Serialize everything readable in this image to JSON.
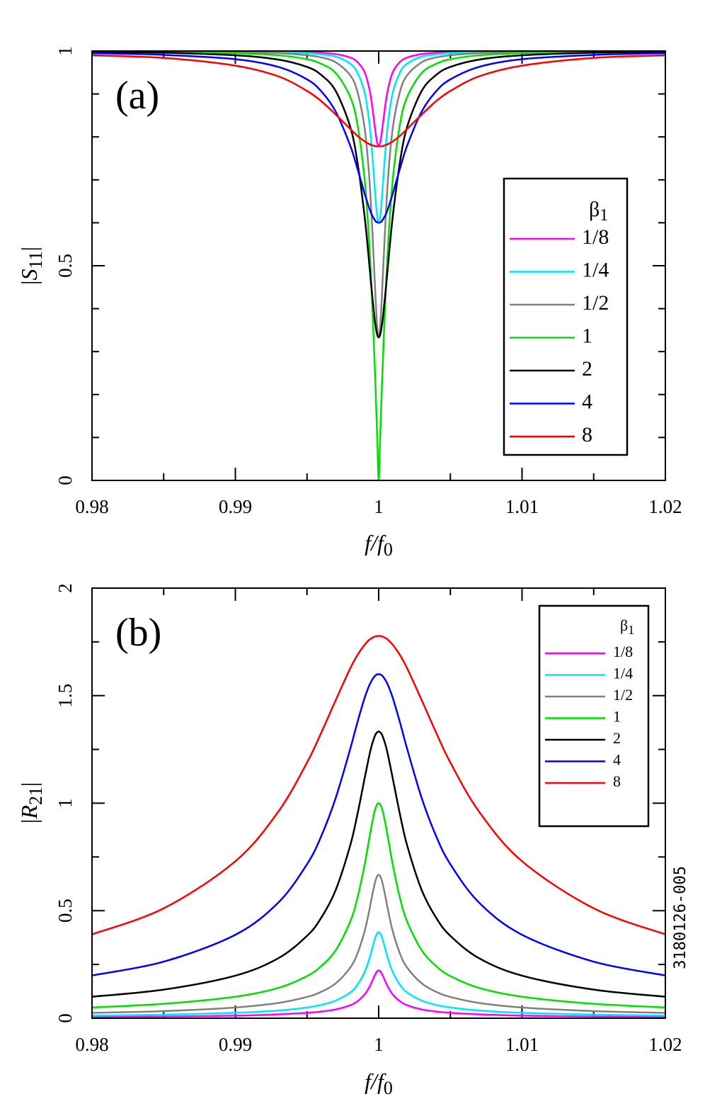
{
  "figure_id": "3180126-005",
  "chart_data": [
    {
      "type": "line",
      "panel_label": "(a)",
      "xlabel": {
        "main": "f/f",
        "sub": "0"
      },
      "ylabel": {
        "open": "|",
        "main": "S",
        "sub": "11",
        "close": "|"
      },
      "legend_title": {
        "main": "β",
        "sub": "1"
      },
      "legend": "right",
      "xlim": [
        0.98,
        1.02
      ],
      "xticks": [
        0.98,
        0.99,
        1,
        1.01,
        1.02
      ],
      "xminor": [
        0.985,
        0.995,
        1.005,
        1.015
      ],
      "ylim": [
        0,
        1
      ],
      "yticks": [
        0,
        0.5,
        1
      ],
      "yminor": [
        0.1,
        0.2,
        0.3,
        0.4,
        0.6,
        0.7,
        0.8,
        0.9
      ],
      "x": [
        0.98,
        0.985,
        0.99,
        0.993,
        0.995,
        0.996,
        0.997,
        0.998,
        0.9985,
        0.999,
        0.9993,
        0.9995,
        0.9997,
        0.9998,
        0.9999,
        1,
        1.0001,
        1.0002,
        1.0003,
        1.0005,
        1.0007,
        1.001,
        1.0015,
        1.002,
        1.003,
        1.004,
        1.005,
        1.007,
        1.01,
        1.015,
        1.02
      ],
      "series": [
        {
          "name": "1/8",
          "color": "#ff00ff",
          "values": [
            1.0,
            1.0,
            0.999,
            0.999,
            0.998,
            0.996,
            0.993,
            0.985,
            0.975,
            0.952,
            0.919,
            0.883,
            0.832,
            0.806,
            0.786,
            0.778,
            0.786,
            0.806,
            0.832,
            0.883,
            0.919,
            0.952,
            0.975,
            0.985,
            0.993,
            0.996,
            0.998,
            0.999,
            0.999,
            1.0,
            1.0
          ]
        },
        {
          "name": "1/4",
          "color": "#00e5ff",
          "values": [
            1.0,
            0.999,
            0.999,
            0.997,
            0.995,
            0.992,
            0.987,
            0.971,
            0.951,
            0.906,
            0.846,
            0.781,
            0.693,
            0.648,
            0.613,
            0.6,
            0.613,
            0.648,
            0.693,
            0.781,
            0.846,
            0.906,
            0.951,
            0.971,
            0.987,
            0.992,
            0.995,
            0.997,
            0.999,
            0.999,
            1.0
          ]
        },
        {
          "name": "1/2",
          "color": "#808080",
          "values": [
            0.999,
            0.999,
            0.998,
            0.995,
            0.99,
            0.985,
            0.974,
            0.944,
            0.907,
            0.825,
            0.725,
            0.62,
            0.483,
            0.413,
            0.356,
            0.333,
            0.356,
            0.413,
            0.483,
            0.62,
            0.725,
            0.825,
            0.907,
            0.944,
            0.974,
            0.985,
            0.99,
            0.995,
            0.998,
            0.999,
            0.999
          ]
        },
        {
          "name": "1",
          "color": "#00e000",
          "values": [
            0.999,
            0.998,
            0.995,
            0.99,
            0.981,
            0.97,
            0.949,
            0.894,
            0.832,
            0.707,
            0.574,
            0.447,
            0.287,
            0.196,
            0.1,
            0,
            0.1,
            0.196,
            0.287,
            0.447,
            0.574,
            0.707,
            0.832,
            0.894,
            0.949,
            0.97,
            0.981,
            0.99,
            0.995,
            0.998,
            0.999
          ]
        },
        {
          "name": "2",
          "color": "#000000",
          "values": [
            0.998,
            0.996,
            0.99,
            0.98,
            0.963,
            0.944,
            0.907,
            0.825,
            0.745,
            0.62,
            0.52,
            0.447,
            0.381,
            0.356,
            0.339,
            0.333,
            0.339,
            0.356,
            0.381,
            0.447,
            0.52,
            0.62,
            0.745,
            0.825,
            0.907,
            0.944,
            0.963,
            0.98,
            0.99,
            0.996,
            0.998
          ]
        },
        {
          "name": "4",
          "color": "#0000ff",
          "values": [
            0.995,
            0.991,
            0.981,
            0.963,
            0.934,
            0.906,
            0.859,
            0.781,
            0.728,
            0.67,
            0.638,
            0.62,
            0.608,
            0.603,
            0.601,
            0.6,
            0.601,
            0.603,
            0.608,
            0.62,
            0.638,
            0.67,
            0.728,
            0.781,
            0.859,
            0.906,
            0.934,
            0.963,
            0.981,
            0.991,
            0.995
          ]
        },
        {
          "name": "8",
          "color": "#ff0000",
          "values": [
            0.99,
            0.984,
            0.966,
            0.941,
            0.907,
            0.883,
            0.852,
            0.819,
            0.803,
            0.79,
            0.784,
            0.781,
            0.779,
            0.778,
            0.778,
            0.778,
            0.778,
            0.778,
            0.779,
            0.781,
            0.784,
            0.79,
            0.803,
            0.819,
            0.852,
            0.883,
            0.907,
            0.941,
            0.966,
            0.984,
            0.99
          ]
        }
      ]
    },
    {
      "type": "line",
      "panel_label": "(b)",
      "xlabel": {
        "main": "f/f",
        "sub": "0"
      },
      "ylabel": {
        "open": "|",
        "main": "R",
        "sub": "21",
        "close": "|"
      },
      "legend_title": {
        "main": "β",
        "sub": "1"
      },
      "legend": "upper right",
      "xlim": [
        0.98,
        1.02
      ],
      "xticks": [
        0.98,
        0.99,
        1,
        1.01,
        1.02
      ],
      "xminor": [
        0.985,
        0.995,
        1.005,
        1.015
      ],
      "ylim": [
        0,
        2
      ],
      "yticks": [
        0,
        0.5,
        1,
        1.5,
        2
      ],
      "yminor": [
        0.25,
        0.75,
        1.25,
        1.75
      ],
      "x": [
        0.98,
        0.985,
        0.99,
        0.993,
        0.995,
        0.996,
        0.997,
        0.998,
        0.9985,
        0.999,
        0.9993,
        0.9995,
        0.9997,
        0.9998,
        0.9999,
        1,
        1.0001,
        1.0002,
        1.0003,
        1.0005,
        1.0007,
        1.001,
        1.0015,
        1.002,
        1.003,
        1.004,
        1.005,
        1.007,
        1.01,
        1.015,
        1.02
      ],
      "series": [
        {
          "name": "1/8",
          "color": "#ff00ff",
          "values": [
            0.006,
            0.008,
            0.012,
            0.018,
            0.025,
            0.031,
            0.041,
            0.06,
            0.078,
            0.109,
            0.139,
            0.166,
            0.196,
            0.209,
            0.219,
            0.222,
            0.219,
            0.209,
            0.196,
            0.166,
            0.139,
            0.109,
            0.078,
            0.06,
            0.041,
            0.031,
            0.025,
            0.018,
            0.012,
            0.008,
            0.006
          ]
        },
        {
          "name": "1/4",
          "color": "#00e5ff",
          "values": [
            0.012,
            0.017,
            0.025,
            0.036,
            0.05,
            0.062,
            0.082,
            0.119,
            0.154,
            0.212,
            0.266,
            0.312,
            0.361,
            0.381,
            0.395,
            0.4,
            0.395,
            0.381,
            0.361,
            0.312,
            0.266,
            0.212,
            0.154,
            0.119,
            0.082,
            0.062,
            0.05,
            0.036,
            0.025,
            0.017,
            0.012
          ]
        },
        {
          "name": "1/2",
          "color": "#808080",
          "values": [
            0.025,
            0.033,
            0.05,
            0.071,
            0.099,
            0.123,
            0.162,
            0.234,
            0.298,
            0.4,
            0.487,
            0.555,
            0.619,
            0.644,
            0.661,
            0.667,
            0.661,
            0.644,
            0.619,
            0.555,
            0.487,
            0.4,
            0.298,
            0.234,
            0.162,
            0.123,
            0.099,
            0.071,
            0.05,
            0.033,
            0.025
          ]
        },
        {
          "name": "1",
          "color": "#00e000",
          "values": [
            0.05,
            0.067,
            0.1,
            0.141,
            0.196,
            0.243,
            0.316,
            0.447,
            0.555,
            0.707,
            0.819,
            0.894,
            0.958,
            0.981,
            0.995,
            1,
            0.995,
            0.981,
            0.958,
            0.894,
            0.819,
            0.707,
            0.555,
            0.447,
            0.316,
            0.243,
            0.196,
            0.141,
            0.1,
            0.067,
            0.05
          ]
        },
        {
          "name": "2",
          "color": "#000000",
          "values": [
            0.1,
            0.133,
            0.198,
            0.279,
            0.383,
            0.468,
            0.596,
            0.8,
            0.943,
            1.109,
            1.208,
            1.265,
            1.307,
            1.322,
            1.33,
            1.333,
            1.33,
            1.322,
            1.307,
            1.265,
            1.208,
            1.109,
            0.943,
            0.8,
            0.596,
            0.468,
            0.383,
            0.279,
            0.198,
            0.133,
            0.1
          ]
        },
        {
          "name": "4",
          "color": "#0000ff",
          "values": [
            0.199,
            0.263,
            0.388,
            0.538,
            0.716,
            0.848,
            1.024,
            1.249,
            1.372,
            1.486,
            1.541,
            1.569,
            1.589,
            1.595,
            1.599,
            1.6,
            1.599,
            1.595,
            1.589,
            1.569,
            1.541,
            1.486,
            1.372,
            1.249,
            1.024,
            0.848,
            0.716,
            0.538,
            0.388,
            0.263,
            0.199
          ]
        },
        {
          "name": "8",
          "color": "#ff0000",
          "values": [
            0.39,
            0.511,
            0.73,
            0.961,
            1.189,
            1.329,
            1.479,
            1.625,
            1.687,
            1.735,
            1.757,
            1.767,
            1.774,
            1.776,
            1.777,
            1.778,
            1.777,
            1.776,
            1.774,
            1.767,
            1.757,
            1.735,
            1.687,
            1.625,
            1.479,
            1.329,
            1.189,
            0.961,
            0.73,
            0.511,
            0.39
          ]
        }
      ]
    }
  ]
}
